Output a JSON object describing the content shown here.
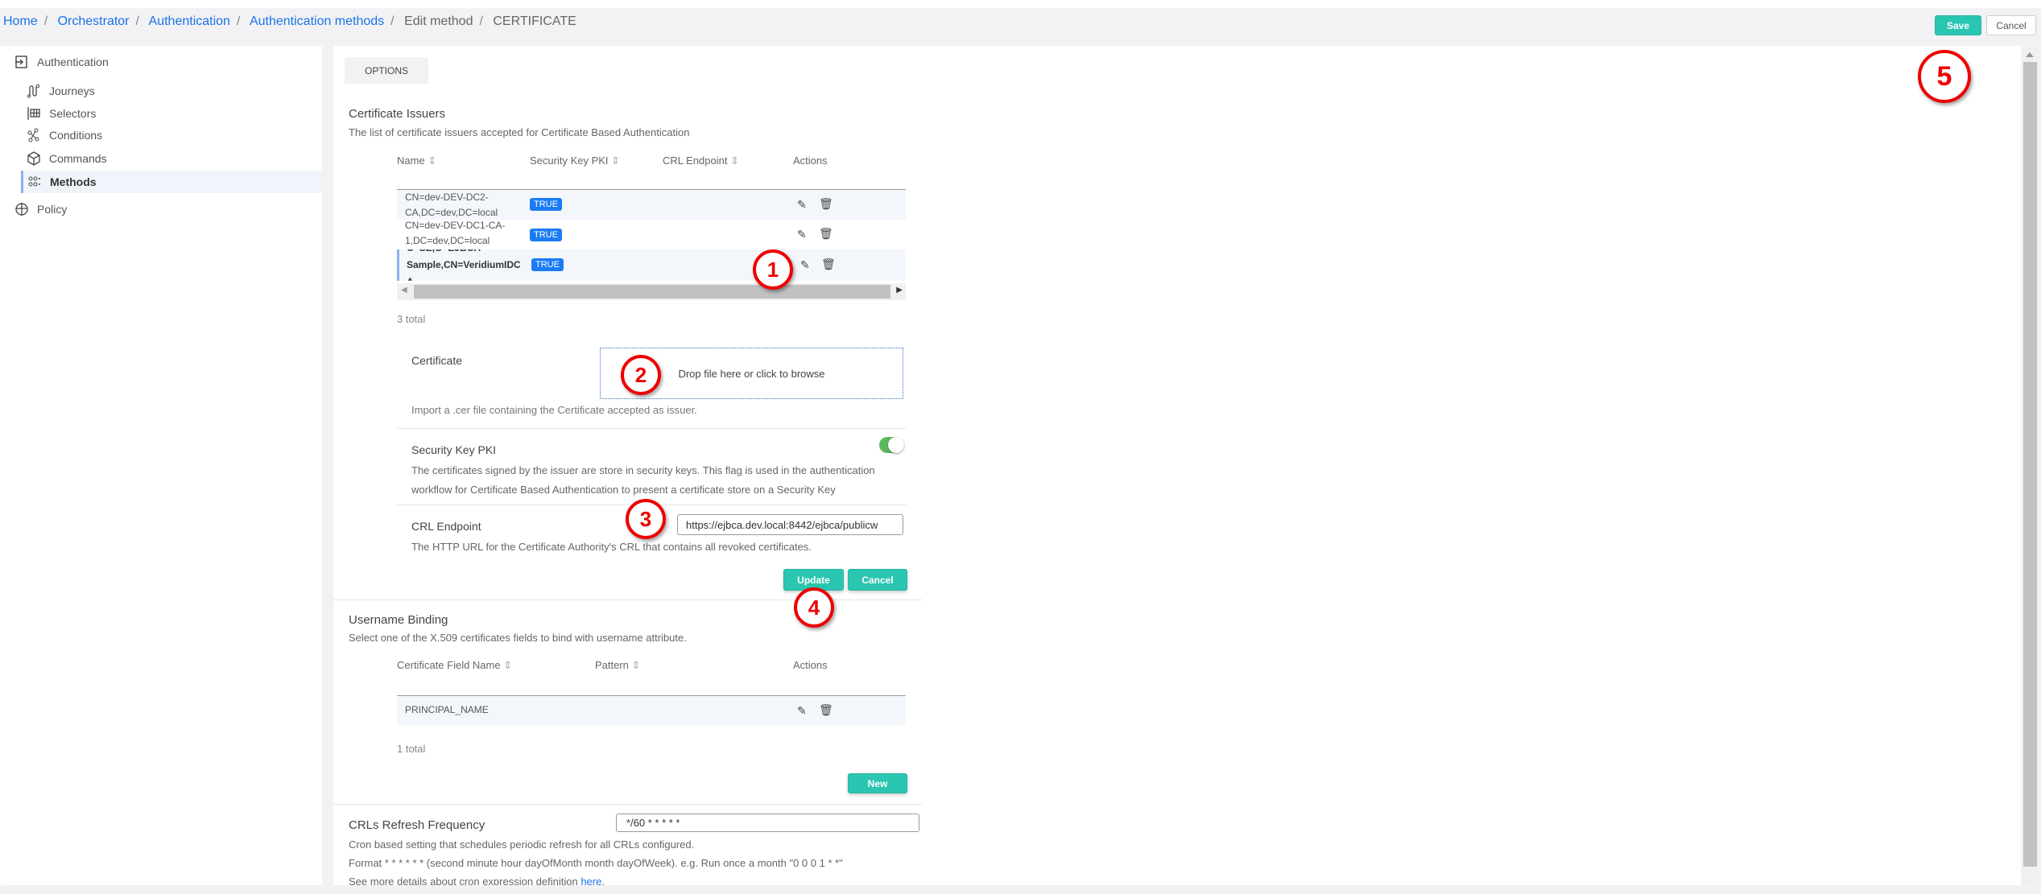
{
  "breadcrumb": [
    "Home",
    "Orchestrator",
    "Authentication",
    "Authentication methods",
    "Edit method",
    "CERTIFICATE"
  ],
  "header": {
    "save": "Save",
    "cancel": "Cancel"
  },
  "sidebar": {
    "section": "Authentication",
    "items": [
      {
        "label": "Journeys",
        "icon": "journeys-icon"
      },
      {
        "label": "Selectors",
        "icon": "selectors-icon"
      },
      {
        "label": "Conditions",
        "icon": "conditions-icon"
      },
      {
        "label": "Commands",
        "icon": "commands-icon"
      },
      {
        "label": "Methods",
        "icon": "methods-icon",
        "selected": true
      }
    ],
    "policy": "Policy"
  },
  "tabs": [
    "OPTIONS"
  ],
  "issuers": {
    "title": "Certificate Issuers",
    "desc": "The list of certificate issuers accepted for Certificate Based Authentication",
    "columns": [
      "Name",
      "Security Key PKI",
      "CRL Endpoint",
      "Actions"
    ],
    "rows": [
      {
        "name1": "CN=dev-DEV-DC2-",
        "name2": "CA,DC=dev,DC=local",
        "pki": "TRUE",
        "crl": ""
      },
      {
        "name1": "CN=dev-DEV-DC1-CA-",
        "name2": "1,DC=dev,DC=local",
        "pki": "TRUE",
        "crl": ""
      },
      {
        "name0": "C=SE,O=EJBCA",
        "name1": "Sample,CN=VeridiumIDC",
        "name2": "A",
        "pki": "TRUE",
        "crl": ""
      }
    ],
    "total": "3 total"
  },
  "form": {
    "cert_label": "Certificate",
    "drop": "Drop file here or click to browse",
    "cert_desc": "Import a .cer file containing the Certificate accepted as issuer.",
    "pki_label": "Security Key PKI",
    "pki_on": true,
    "pki_desc1": "The certificates signed by the issuer are store in security keys. This flag is used in the authentication",
    "pki_desc2": "workflow for Certificate Based Authentication to present a certificate store on a Security Key",
    "crl_label": "CRL Endpoint",
    "crl_value": "https://ejbca.dev.local:8442/ejbca/publicw",
    "crl_desc": "The HTTP URL for the Certificate Authority's CRL that contains all revoked certificates.",
    "update": "Update",
    "cancel": "Cancel"
  },
  "binding": {
    "title": "Username Binding",
    "desc": "Select one of the X.509 certificates fields to bind with username attribute.",
    "columns": [
      "Certificate Field Name",
      "Pattern",
      "Actions"
    ],
    "rows": [
      {
        "field": "PRINCIPAL_NAME",
        "pattern": ""
      }
    ],
    "total": "1 total",
    "new": "New"
  },
  "crl_refresh": {
    "label": "CRLs Refresh Frequency",
    "value": "*/60 * * * * *",
    "desc1": "Cron based setting that schedules periodic refresh for all CRLs configured.",
    "desc2": "Format * * * * * * (second minute hour dayOfMonth month dayOfWeek). e.g. Run once a month \"0 0 0 1 * *\"",
    "desc3": "See more details about cron expression definition ",
    "link": "here",
    "desc3_end": "."
  },
  "annotations": [
    "1",
    "2",
    "3",
    "4",
    "5"
  ],
  "colors": {
    "accent": "#2bc6b1",
    "badge": "#1a7cf5",
    "link": "#1a73e8",
    "annotation": "#e00000",
    "toggle": "#5cb85c"
  }
}
